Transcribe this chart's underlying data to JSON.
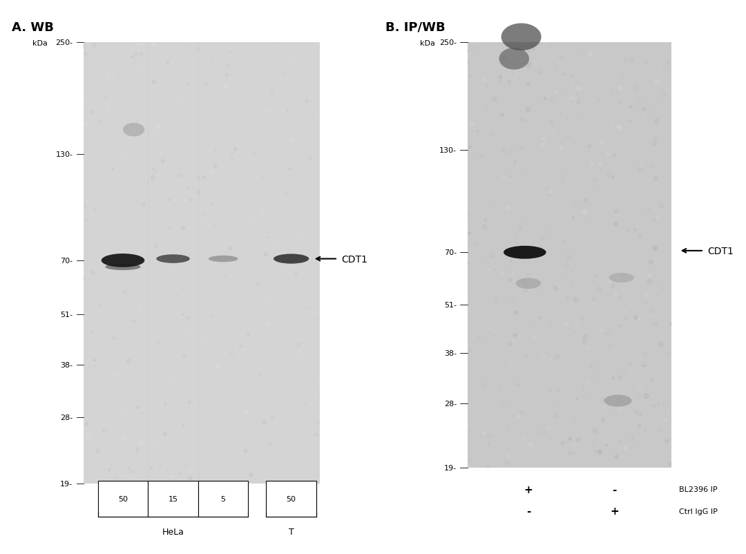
{
  "bg_color": "#e8e8e8",
  "white_color": "#ffffff",
  "panel_a_title": "A. WB",
  "panel_b_title": "B. IP/WB",
  "marker_labels": [
    "250",
    "130",
    "70",
    "51",
    "38",
    "28",
    "19"
  ],
  "kda_label": "kDa",
  "cdt1_label": "CDT1",
  "lane_labels_a": [
    "50",
    "15",
    "5",
    "50"
  ],
  "group_label_hela": "HeLa",
  "group_label_t": "T",
  "bl2396_label": "BL2396 IP",
  "ctrl_igg_label": "Ctrl IgG IP",
  "plus_minus_bl2396": [
    "+",
    "-"
  ],
  "plus_minus_ctrl": [
    "-",
    "+"
  ]
}
